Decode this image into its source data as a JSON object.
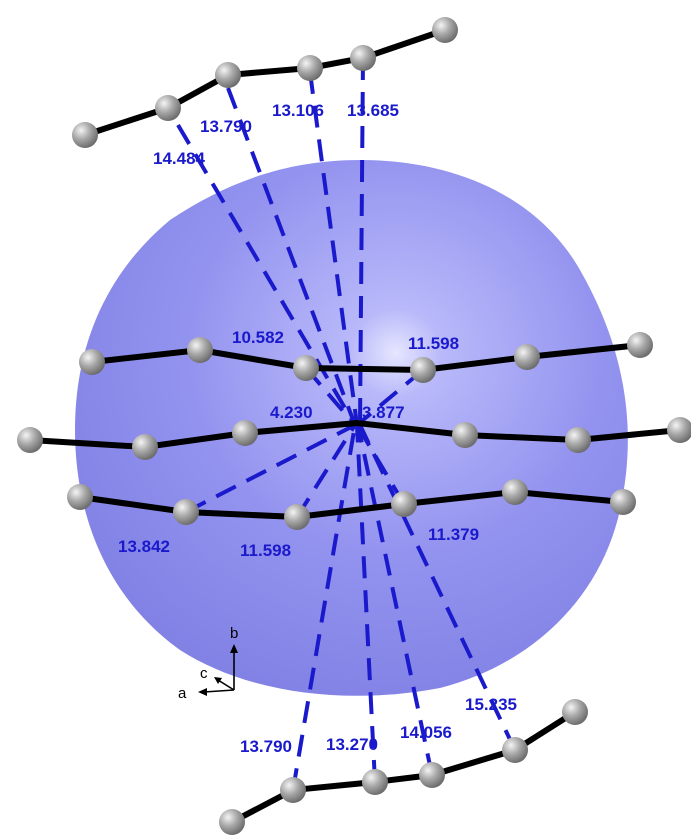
{
  "distance_labels": {
    "top_1": "14.484",
    "top_2": "13.790",
    "top_3": "13.106",
    "top_4": "13.685",
    "upper_left": "10.582",
    "upper_right": "11.598",
    "center_left": "4.230",
    "center_right": "3.877",
    "lower_left": "13.842",
    "lower_mid": "11.598",
    "lower_right": "11.379",
    "bottom_1": "13.790",
    "bottom_2": "13.270",
    "bottom_3": "14.056",
    "bottom_4": "15.235"
  },
  "axes": {
    "a": "a",
    "b": "b",
    "c": "c"
  },
  "colors": {
    "sphere": "#8c8cf0",
    "label": "#1a1acc",
    "contact": "#1a1acc",
    "atom": "#9a9a9a",
    "bond": "#000000"
  }
}
